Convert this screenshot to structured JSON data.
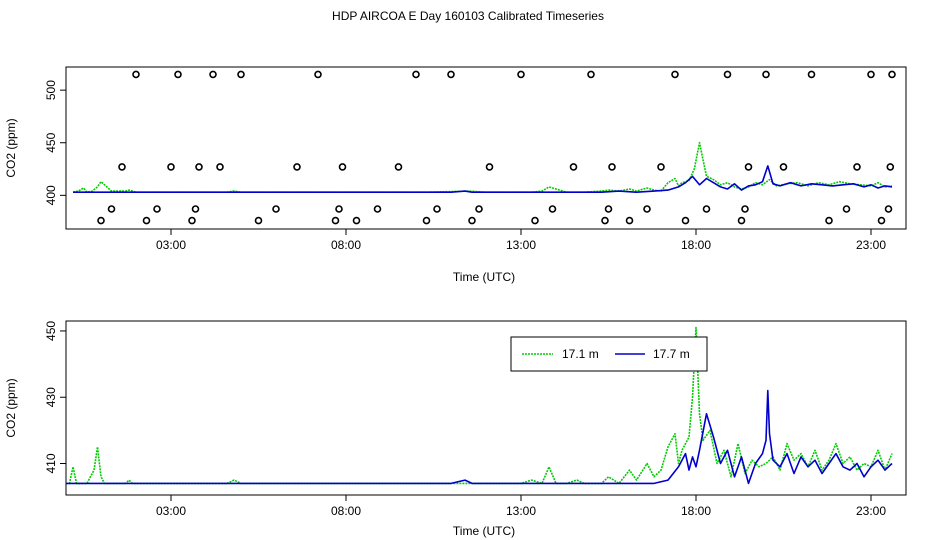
{
  "title": "HDP AIRCOA E  Day 160103  Calibrated Timeseries",
  "colors": {
    "s17_1": "#00cc00",
    "s17_7": "#0000cc",
    "axis": "#000000"
  },
  "chart_data": [
    {
      "type": "line",
      "xlabel": "Time (UTC)",
      "ylabel": "CO2 (ppm)",
      "xlim": [
        0,
        24
      ],
      "ylim": [
        368,
        522
      ],
      "x_ticks": [
        3,
        8,
        13,
        18,
        23
      ],
      "x_tick_labels": [
        "03:00",
        "08:00",
        "13:00",
        "18:00",
        "23:00"
      ],
      "y_ticks": [
        400,
        450,
        500
      ],
      "y_tick_labels": [
        "400",
        "450",
        "500"
      ],
      "legend": false,
      "series": [
        {
          "name": "17.1 m",
          "color": "#00cc00",
          "x": [
            0.2,
            0.35,
            0.5,
            0.6,
            0.75,
            0.9,
            1.0,
            1.3,
            1.7,
            1.8,
            2.0,
            2.3,
            4.6,
            4.8,
            5.0,
            7.0,
            7.6,
            10.0,
            10.3,
            11.5,
            12.0,
            13.3,
            13.6,
            13.8,
            14.3,
            14.8,
            15.3,
            15.5,
            15.8,
            16.1,
            16.3,
            16.6,
            16.8,
            17.0,
            17.2,
            17.4,
            17.5,
            17.6,
            17.8,
            17.95,
            18.1,
            18.3,
            18.5,
            18.7,
            18.9,
            19.1,
            19.3,
            19.5,
            19.7,
            19.9,
            20.1,
            20.3,
            20.6,
            20.9,
            21.2,
            21.5,
            21.8,
            22.1,
            22.4,
            22.7,
            23.0,
            23.2,
            23.4,
            23.6
          ],
          "y": [
            403,
            404,
            407,
            403,
            404,
            408,
            413,
            404,
            404,
            405,
            403,
            403,
            403,
            404,
            403,
            403,
            403,
            403,
            403,
            404,
            403,
            403,
            404,
            408,
            403,
            403,
            404,
            405,
            404,
            406,
            404,
            407,
            405,
            404,
            412,
            416,
            409,
            412,
            414,
            425,
            450,
            418,
            415,
            410,
            412,
            408,
            406,
            408,
            412,
            410,
            415,
            409,
            411,
            412,
            409,
            412,
            410,
            413,
            411,
            410,
            409,
            412,
            408,
            409
          ]
        },
        {
          "name": "17.7 m",
          "color": "#0000cc",
          "x": [
            0.2,
            0.6,
            1.0,
            1.5,
            2.0,
            3.0,
            5.0,
            7.0,
            9.0,
            11.0,
            11.4,
            11.6,
            12.5,
            13.5,
            14.5,
            15.3,
            15.8,
            16.3,
            16.8,
            17.2,
            17.5,
            17.7,
            17.9,
            18.1,
            18.3,
            18.5,
            18.7,
            18.9,
            19.1,
            19.3,
            19.5,
            19.7,
            19.9,
            20.05,
            20.2,
            20.4,
            20.7,
            21.0,
            21.3,
            21.6,
            21.9,
            22.2,
            22.5,
            22.8,
            23.0,
            23.2,
            23.4,
            23.6
          ],
          "y": [
            403,
            403,
            403,
            403,
            403,
            403,
            403,
            403,
            403,
            403,
            404,
            403,
            403,
            403,
            403,
            403,
            404,
            403,
            404,
            405,
            408,
            412,
            418,
            410,
            416,
            412,
            408,
            406,
            411,
            405,
            409,
            410,
            413,
            428,
            411,
            409,
            412,
            409,
            411,
            410,
            409,
            410,
            411,
            408,
            410,
            407,
            409,
            408
          ]
        }
      ],
      "markers": {
        "x": [
          1.0,
          1.3,
          1.6,
          2.0,
          2.3,
          2.6,
          3.0,
          3.2,
          3.6,
          3.7,
          3.8,
          4.2,
          4.4,
          5.0,
          5.5,
          6.0,
          6.6,
          7.2,
          7.7,
          7.8,
          7.9,
          8.3,
          8.9,
          9.5,
          10.0,
          10.3,
          10.6,
          11.0,
          11.6,
          11.8,
          12.1,
          13.0,
          13.4,
          13.9,
          14.5,
          15.0,
          15.4,
          15.5,
          15.6,
          16.1,
          16.6,
          17.0,
          17.4,
          17.7,
          18.3,
          18.9,
          19.3,
          19.4,
          19.5,
          20.0,
          20.5,
          21.3,
          21.8,
          22.3,
          22.6,
          23.0,
          23.3,
          23.5,
          23.55,
          23.6
        ],
        "y": [
          376,
          387,
          427,
          515,
          376,
          387,
          427,
          515,
          376,
          387,
          427,
          515,
          427,
          515,
          376,
          387,
          427,
          515,
          376,
          387,
          427,
          376,
          387,
          427,
          515,
          376,
          387,
          515,
          376,
          387,
          427,
          515,
          376,
          387,
          427,
          515,
          376,
          387,
          427,
          376,
          387,
          427,
          515,
          376,
          387,
          515,
          376,
          387,
          427,
          515,
          427,
          515,
          376,
          387,
          427,
          515,
          376,
          387,
          427,
          515
        ]
      }
    },
    {
      "type": "line",
      "xlabel": "Time (UTC)",
      "ylabel": "CO2 (ppm)",
      "xlim": [
        0,
        24
      ],
      "ylim": [
        400.5,
        453
      ],
      "x_ticks": [
        3,
        8,
        13,
        18,
        23
      ],
      "x_tick_labels": [
        "03:00",
        "08:00",
        "13:00",
        "18:00",
        "23:00"
      ],
      "y_ticks": [
        410,
        430,
        450
      ],
      "y_tick_labels": [
        "410",
        "430",
        "450"
      ],
      "legend": "top-center",
      "series": [
        {
          "name": "17.1 m",
          "color": "#00cc00",
          "x": [
            0.0,
            0.1,
            0.2,
            0.3,
            0.6,
            0.8,
            0.9,
            1.0,
            1.1,
            1.3,
            1.7,
            1.8,
            1.9,
            2.0,
            2.3,
            4.6,
            4.8,
            5.0,
            6.0,
            7.0,
            8.0,
            10.0,
            11.5,
            12.0,
            13.0,
            13.3,
            13.6,
            13.8,
            14.0,
            14.3,
            14.6,
            14.8,
            15.3,
            15.5,
            15.8,
            16.1,
            16.3,
            16.6,
            16.8,
            17.0,
            17.2,
            17.4,
            17.5,
            17.6,
            17.8,
            17.9,
            18.0,
            18.1,
            18.2,
            18.4,
            18.6,
            18.8,
            19.0,
            19.2,
            19.4,
            19.6,
            19.8,
            20.0,
            20.2,
            20.4,
            20.6,
            20.8,
            21.0,
            21.2,
            21.4,
            21.6,
            21.8,
            22.0,
            22.2,
            22.4,
            22.6,
            22.8,
            23.0,
            23.2,
            23.4,
            23.6
          ],
          "y": [
            404,
            404,
            409,
            404,
            404,
            408,
            415,
            406,
            404,
            404,
            404,
            405,
            404,
            404,
            404,
            404,
            405,
            404,
            404,
            404,
            404,
            404,
            404,
            404,
            404,
            405,
            404,
            409,
            404,
            404,
            405,
            404,
            404,
            406,
            404,
            408,
            405,
            410,
            406,
            408,
            415,
            419,
            410,
            414,
            418,
            430,
            451,
            425,
            417,
            420,
            410,
            414,
            406,
            416,
            407,
            411,
            409,
            410,
            412,
            408,
            416,
            411,
            413,
            409,
            414,
            408,
            411,
            416,
            410,
            412,
            408,
            410,
            409,
            414,
            408,
            413
          ]
        },
        {
          "name": "17.7 m",
          "color": "#0000cc",
          "x": [
            0.0,
            0.5,
            1.0,
            1.5,
            2.0,
            3.0,
            4.0,
            5.0,
            6.0,
            7.0,
            8.0,
            9.0,
            10.0,
            11.0,
            11.4,
            11.6,
            12.5,
            13.5,
            14.5,
            15.3,
            15.8,
            16.3,
            16.8,
            17.2,
            17.5,
            17.7,
            17.8,
            17.9,
            18.0,
            18.1,
            18.3,
            18.5,
            18.7,
            18.9,
            19.1,
            19.3,
            19.5,
            19.7,
            19.9,
            20.0,
            20.05,
            20.1,
            20.2,
            20.4,
            20.6,
            20.8,
            21.0,
            21.2,
            21.4,
            21.6,
            21.8,
            22.0,
            22.2,
            22.4,
            22.6,
            22.8,
            23.0,
            23.2,
            23.4,
            23.6
          ],
          "y": [
            404,
            404,
            404,
            404,
            404,
            404,
            404,
            404,
            404,
            404,
            404,
            404,
            404,
            404,
            405,
            404,
            404,
            404,
            404,
            404,
            404,
            404,
            404,
            405,
            409,
            413,
            408,
            412,
            409,
            414,
            425,
            418,
            410,
            414,
            406,
            412,
            404,
            410,
            413,
            417,
            432,
            419,
            411,
            409,
            413,
            407,
            412,
            409,
            411,
            407,
            410,
            413,
            409,
            408,
            410,
            406,
            409,
            411,
            408,
            410
          ]
        }
      ]
    }
  ],
  "legend_items": [
    {
      "label": "17.1 m"
    },
    {
      "label": "17.7 m"
    }
  ]
}
